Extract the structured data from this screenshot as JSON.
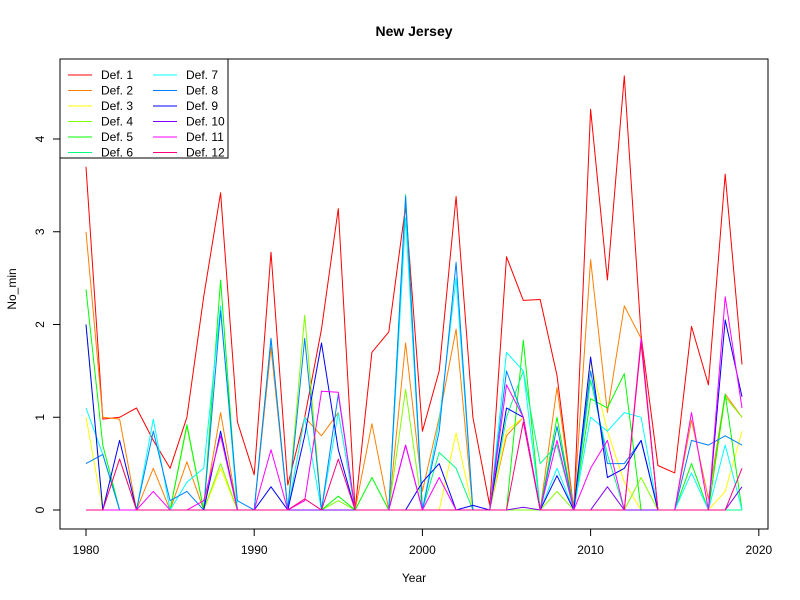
{
  "chart_data": {
    "type": "line",
    "title": "New Jersey",
    "xlabel": "Year",
    "ylabel": "No_min",
    "xlim": [
      1980,
      2019
    ],
    "ylim": [
      0,
      4.7
    ],
    "x_ticks": [
      1980,
      1990,
      2000,
      2010,
      2020
    ],
    "y_ticks": [
      0,
      1,
      2,
      3,
      4
    ],
    "grid": false,
    "legend_placement": "top-left",
    "x": [
      1980,
      1981,
      1982,
      1983,
      1984,
      1985,
      1986,
      1987,
      1988,
      1989,
      1990,
      1991,
      1992,
      1993,
      1994,
      1995,
      1996,
      1997,
      1998,
      1999,
      2000,
      2001,
      2002,
      2003,
      2004,
      2005,
      2006,
      2007,
      2008,
      2009,
      2010,
      2011,
      2012,
      2013,
      2014,
      2015,
      2016,
      2017,
      2018,
      2019
    ],
    "series": [
      {
        "name": "Def. 1",
        "color": "#FF0000",
        "values": [
          3.7,
          0.98,
          1.0,
          1.1,
          0.75,
          0.45,
          1.0,
          2.3,
          3.42,
          0.95,
          0.38,
          2.78,
          0.27,
          1.0,
          1.95,
          3.25,
          0.0,
          1.7,
          1.92,
          3.28,
          0.85,
          1.5,
          3.38,
          1.0,
          0.05,
          2.73,
          2.26,
          2.27,
          1.45,
          0.0,
          4.32,
          2.48,
          4.68,
          1.88,
          0.48,
          0.4,
          1.98,
          1.35,
          3.62,
          1.57
        ]
      },
      {
        "name": "Def. 2",
        "color": "#FF8000",
        "values": [
          3.0,
          1.0,
          0.98,
          0.0,
          0.45,
          0.0,
          0.52,
          0.0,
          1.05,
          0.0,
          0.0,
          1.75,
          0.0,
          1.0,
          0.8,
          1.05,
          0.0,
          0.93,
          0.0,
          1.8,
          0.2,
          1.0,
          1.95,
          0.0,
          0.0,
          0.8,
          1.0,
          0.0,
          1.32,
          0.0,
          2.7,
          1.05,
          2.2,
          1.85,
          0.0,
          0.0,
          0.97,
          0.12,
          1.25,
          1.0
        ]
      },
      {
        "name": "Def. 3",
        "color": "#FFFF00",
        "values": [
          1.0,
          0.0,
          0.0,
          0.0,
          0.0,
          0.0,
          0.0,
          0.0,
          0.45,
          0.0,
          0.0,
          0.0,
          0.0,
          0.0,
          0.0,
          0.0,
          0.0,
          0.0,
          0.0,
          0.0,
          0.0,
          0.0,
          0.83,
          0.0,
          0.0,
          0.85,
          1.0,
          0.0,
          0.0,
          0.0,
          1.6,
          0.85,
          0.3,
          0.0,
          0.0,
          0.0,
          0.0,
          0.0,
          0.2,
          0.85
        ]
      },
      {
        "name": "Def. 4",
        "color": "#80FF00",
        "values": [
          2.0,
          0.0,
          0.55,
          0.0,
          0.0,
          0.0,
          0.9,
          0.0,
          0.5,
          0.0,
          0.0,
          0.0,
          0.0,
          2.1,
          0.0,
          0.1,
          0.0,
          0.0,
          0.0,
          1.3,
          0.0,
          0.0,
          0.0,
          0.0,
          0.0,
          0.0,
          0.0,
          0.0,
          0.2,
          0.0,
          0.0,
          0.0,
          0.0,
          0.35,
          0.0,
          0.0,
          0.0,
          0.0,
          1.22,
          1.0
        ]
      },
      {
        "name": "Def. 5",
        "color": "#00FF00",
        "values": [
          2.38,
          0.7,
          0.0,
          0.0,
          0.0,
          0.0,
          0.92,
          0.0,
          2.48,
          0.0,
          0.0,
          0.0,
          0.0,
          0.0,
          0.0,
          0.15,
          0.0,
          0.35,
          0.0,
          0.0,
          0.0,
          0.0,
          0.0,
          0.0,
          0.0,
          0.0,
          1.83,
          0.0,
          1.0,
          0.0,
          1.2,
          1.1,
          1.47,
          0.0,
          0.0,
          0.0,
          0.5,
          0.0,
          1.25,
          0.0
        ]
      },
      {
        "name": "Def. 6",
        "color": "#00FF80",
        "values": [
          0.0,
          0.0,
          0.0,
          0.0,
          0.0,
          0.0,
          0.0,
          0.0,
          0.0,
          0.0,
          0.0,
          0.0,
          0.0,
          0.0,
          0.0,
          0.0,
          0.0,
          0.0,
          0.0,
          3.4,
          0.0,
          0.62,
          0.45,
          0.0,
          0.0,
          1.0,
          1.5,
          0.5,
          0.7,
          0.0,
          1.4,
          0.6,
          0.0,
          0.0,
          0.0,
          0.0,
          0.0,
          0.0,
          0.0,
          0.0
        ]
      },
      {
        "name": "Def. 7",
        "color": "#00FFFF",
        "values": [
          1.1,
          0.6,
          0.0,
          0.0,
          0.98,
          0.0,
          0.3,
          0.45,
          2.2,
          0.0,
          0.0,
          1.85,
          0.0,
          1.0,
          0.0,
          1.05,
          0.0,
          0.0,
          0.0,
          3.15,
          0.0,
          0.95,
          2.5,
          0.0,
          0.0,
          1.7,
          1.5,
          0.0,
          0.45,
          0.0,
          1.0,
          0.85,
          1.05,
          1.0,
          0.0,
          0.0,
          0.4,
          0.0,
          0.7,
          0.0
        ]
      },
      {
        "name": "Def. 8",
        "color": "#0080FF",
        "values": [
          0.5,
          0.6,
          0.0,
          0.0,
          0.85,
          0.1,
          0.2,
          0.0,
          2.15,
          0.1,
          0.0,
          1.85,
          0.0,
          1.85,
          0.0,
          1.25,
          0.0,
          0.0,
          0.0,
          3.38,
          0.0,
          0.85,
          2.67,
          0.0,
          0.0,
          1.5,
          1.0,
          0.0,
          0.9,
          0.0,
          1.5,
          0.5,
          0.5,
          0.75,
          0.0,
          0.0,
          0.75,
          0.7,
          0.8,
          0.7
        ]
      },
      {
        "name": "Def. 9",
        "color": "#0000FF",
        "values": [
          2.0,
          0.0,
          0.75,
          0.0,
          0.0,
          0.0,
          0.0,
          0.0,
          0.85,
          0.0,
          0.0,
          0.25,
          0.0,
          0.8,
          1.8,
          0.65,
          0.0,
          0.0,
          0.0,
          0.0,
          0.3,
          0.5,
          0.0,
          0.05,
          0.0,
          1.1,
          1.0,
          0.0,
          0.37,
          0.0,
          1.65,
          0.35,
          0.45,
          0.75,
          0.0,
          0.0,
          0.0,
          0.0,
          2.05,
          1.22
        ]
      },
      {
        "name": "Def. 10",
        "color": "#8000FF",
        "values": [
          0.0,
          0.0,
          0.0,
          0.0,
          0.0,
          0.0,
          0.0,
          0.0,
          0.0,
          0.0,
          0.0,
          0.0,
          0.0,
          0.0,
          0.0,
          0.0,
          0.0,
          0.0,
          0.0,
          0.7,
          0.0,
          0.0,
          0.0,
          0.0,
          0.0,
          0.0,
          0.03,
          0.0,
          0.0,
          0.0,
          0.0,
          0.25,
          0.0,
          0.0,
          0.0,
          0.0,
          0.0,
          0.0,
          0.0,
          0.25
        ]
      },
      {
        "name": "Def. 11",
        "color": "#FF00FF",
        "values": [
          0.0,
          0.0,
          0.0,
          0.0,
          0.2,
          0.0,
          0.0,
          0.1,
          0.8,
          0.0,
          0.0,
          0.65,
          0.0,
          0.1,
          1.28,
          1.27,
          0.0,
          0.0,
          0.0,
          0.7,
          0.0,
          0.35,
          0.0,
          0.0,
          0.0,
          1.35,
          1.0,
          0.0,
          0.75,
          0.0,
          0.45,
          0.75,
          0.0,
          1.85,
          0.0,
          0.0,
          1.05,
          0.0,
          2.3,
          1.1
        ]
      },
      {
        "name": "Def. 12",
        "color": "#FF0080",
        "values": [
          0.0,
          0.0,
          0.55,
          0.0,
          0.0,
          0.0,
          0.0,
          0.0,
          0.0,
          0.0,
          0.0,
          0.0,
          0.0,
          0.12,
          0.0,
          0.55,
          0.0,
          0.0,
          0.0,
          0.0,
          0.0,
          0.0,
          0.0,
          0.0,
          0.0,
          0.0,
          0.95,
          0.0,
          0.0,
          0.0,
          0.0,
          0.0,
          0.0,
          1.8,
          0.0,
          0.0,
          0.0,
          0.0,
          0.0,
          0.45
        ]
      }
    ]
  }
}
